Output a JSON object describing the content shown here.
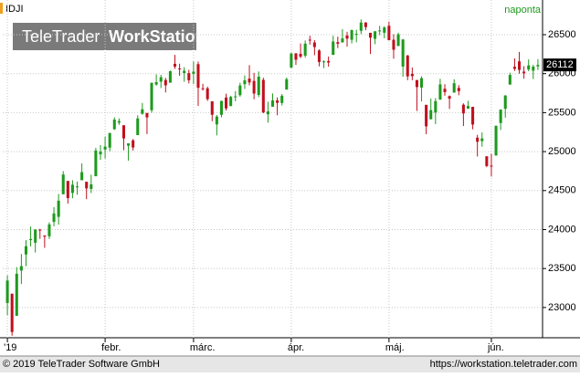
{
  "chart_data": {
    "type": "candlestick",
    "symbol": "IDJI",
    "interval": "naponta",
    "watermark": {
      "brand": "TeleTrader",
      "product": "WorkStation"
    },
    "up_color": "#1e9a1e",
    "down_color": "#c0101e",
    "grid": true,
    "ylim": [
      22612,
      26945
    ],
    "yticks": [
      23000,
      23500,
      24000,
      24500,
      25000,
      25500,
      26000,
      26500
    ],
    "xlim": [
      -1,
      115
    ],
    "xticks": [
      {
        "value": 0,
        "label": "'19"
      },
      {
        "value": 21,
        "label": "febr."
      },
      {
        "value": 40,
        "label": "márc."
      },
      {
        "value": 61,
        "label": "ápr."
      },
      {
        "value": 82,
        "label": "máj."
      },
      {
        "value": 104,
        "label": "jún."
      }
    ],
    "open": [
      23058,
      23177,
      22894,
      23474,
      23680,
      23864,
      23831,
      23999,
      23924,
      23914,
      24099,
      24163,
      24453,
      24624,
      24470,
      24550,
      24633,
      24613,
      24521,
      24684,
      24965,
      25026,
      25051,
      25287,
      25371,
      25338,
      25076,
      25145,
      25212,
      25485,
      25495,
      25531,
      25860,
      25897,
      25919,
      25884,
      26126,
      26067,
      26007,
      26007,
      25999,
      26122,
      25812,
      25812,
      25645,
      25349,
      25472,
      25694,
      25584,
      25703,
      25724,
      25865,
      25937,
      25907,
      25727,
      25920,
      25479,
      25576,
      25657,
      25624,
      25796,
      26076,
      26261,
      26254,
      26231,
      26436,
      26400,
      26297,
      26155,
      26162,
      26241,
      26404,
      26400,
      26489,
      26435,
      26498,
      26550,
      26656,
      26524,
      26447,
      26552,
      26525,
      26614,
      26435,
      26355,
      26091,
      26233,
      25997,
      25918,
      25822,
      25600,
      25415,
      25501,
      25669,
      25806,
      25712,
      25757,
      25817,
      25602,
      25551,
      25575,
      25179,
      25134,
      24940,
      24820,
      24950,
      25367,
      25550,
      25860,
      26089,
      26158,
      26026,
      26054,
      26039,
      26094
    ],
    "high": [
      23413,
      23177,
      23518,
      23687,
      23864,
      24039,
      24002,
      24009,
      23924,
      24092,
      24288,
      24457,
      24750,
      24624,
      24633,
      24615,
      24849,
      24613,
      24704,
      25049,
      25084,
      25193,
      25239,
      25440,
      25426,
      25338,
      25106,
      25161,
      25466,
      25624,
      25496,
      25884,
      25991,
      25985,
      25946,
      26040,
      26241,
      26128,
      26084,
      26050,
      26156,
      26155,
      25869,
      25834,
      25646,
      25469,
      25654,
      25743,
      25717,
      25776,
      25884,
      25977,
      26109,
      26011,
      26028,
      25948,
      25640,
      25746,
      25696,
      25739,
      25950,
      26269,
      26262,
      26387,
      26426,
      26486,
      26431,
      26313,
      26172,
      26219,
      26486,
      26475,
      26570,
      26537,
      26565,
      26563,
      26696,
      26661,
      26524,
      26547,
      26614,
      26609,
      26668,
      26506,
      26526,
      26445,
      26240,
      26080,
      25920,
      25966,
      25600,
      25682,
      25687,
      25934,
      25865,
      25720,
      25928,
      25853,
      25619,
      25652,
      25575,
      25215,
      25246,
      24940,
      24972,
      25332,
      25542,
      25724,
      26013,
      26197,
      26279,
      26097,
      26183,
      26115,
      26186
    ],
    "low": [
      22902,
      22638,
      22894,
      23301,
      23530,
      23783,
      23706,
      23881,
      23766,
      23880,
      24042,
      24064,
      24453,
      24333,
      24401,
      24447,
      24633,
      24390,
      24468,
      24684,
      24894,
      24911,
      25005,
      25279,
      25343,
      25018,
      24884,
      25014,
      25212,
      25474,
      25225,
      25500,
      25847,
      25816,
      25759,
      25884,
      26062,
      25972,
      25897,
      25875,
      25868,
      25586,
      25783,
      25650,
      25390,
      25208,
      25441,
      25526,
      25584,
      25646,
      25704,
      25803,
      25850,
      25671,
      25700,
      25492,
      25371,
      25576,
      25466,
      25592,
      25796,
      26076,
      26112,
      26199,
      26205,
      26372,
      26236,
      26094,
      26071,
      26090,
      26241,
      26327,
      26400,
      26348,
      26388,
      26402,
      26507,
      26558,
      26253,
      26378,
      26494,
      26454,
      26427,
      26192,
      26355,
      25960,
      25916,
      25916,
      25522,
      25643,
      25223,
      25415,
      25353,
      25663,
      25717,
      25547,
      25757,
      25723,
      25328,
      25549,
      25286,
      24938,
      25063,
      24800,
      24680,
      24950,
      25278,
      25436,
      25860,
      26034,
      25999,
      25935,
      26031,
      25930,
      26047
    ],
    "close": [
      23346,
      22686,
      23433,
      23531,
      23787,
      23879,
      24001,
      23996,
      23910,
      24066,
      24207,
      24370,
      24706,
      24404,
      24575,
      24553,
      24737,
      24528,
      24580,
      25014,
      24999,
      25064,
      25239,
      25411,
      25391,
      25169,
      25106,
      25053,
      25425,
      25543,
      25439,
      25883,
      25891,
      25954,
      25850,
      26031,
      26091,
      26057,
      26037,
      25916,
      26026,
      25819,
      25806,
      25673,
      25473,
      25450,
      25650,
      25554,
      25702,
      25709,
      25849,
      25914,
      25887,
      25745,
      25962,
      25502,
      25516,
      25657,
      25626,
      25717,
      25929,
      26258,
      26179,
      26218,
      26385,
      26425,
      26341,
      26150,
      26157,
      26143,
      26412,
      26384,
      26452,
      26449,
      26559,
      26511,
      26656,
      26597,
      26462,
      26543,
      26554,
      26592,
      26430,
      26307,
      26505,
      26438,
      25965,
      25968,
      25828,
      25942,
      25324,
      25532,
      25648,
      25862,
      25764,
      25679,
      25877,
      25776,
      25490,
      25585,
      25347,
      25126,
      25169,
      24815,
      24819,
      25332,
      25539,
      25720,
      25983,
      26062,
      26048,
      26004,
      26106,
      26090,
      26112
    ]
  },
  "footer": {
    "copyright": "© 2019 TeleTrader Software GmbH",
    "url": "https://workstation.teletrader.com"
  }
}
